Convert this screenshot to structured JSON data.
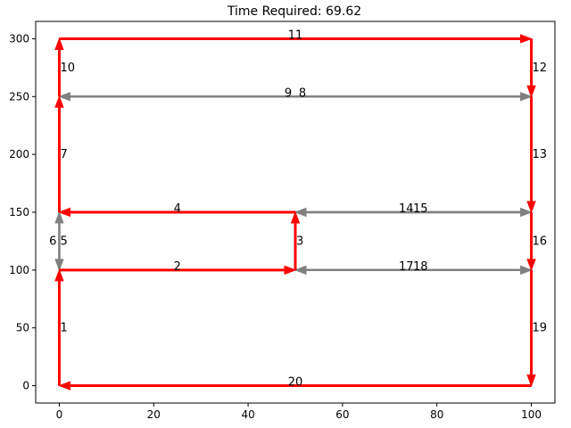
{
  "chart_data": {
    "type": "line",
    "title": "Time Required: 69.62",
    "xlabel": "",
    "ylabel": "",
    "xlim": [
      -5,
      105
    ],
    "ylim": [
      -15,
      315
    ],
    "x_ticks": [
      0,
      20,
      40,
      60,
      80,
      100
    ],
    "y_ticks": [
      0,
      50,
      100,
      150,
      200,
      250,
      300
    ],
    "grid": false,
    "colors": {
      "primary": "#ff0000",
      "secondary": "#808080"
    },
    "segments": [
      {
        "id": "1",
        "from": [
          0,
          0
        ],
        "to": [
          0,
          100
        ],
        "style": "primary",
        "label": "1"
      },
      {
        "id": "2",
        "from": [
          0,
          100
        ],
        "to": [
          50,
          100
        ],
        "style": "primary",
        "label": "2"
      },
      {
        "id": "3",
        "from": [
          50,
          100
        ],
        "to": [
          50,
          150
        ],
        "style": "primary",
        "label": "3"
      },
      {
        "id": "4",
        "from": [
          50,
          150
        ],
        "to": [
          0,
          150
        ],
        "style": "primary",
        "label": "4"
      },
      {
        "id": "5",
        "from": [
          0,
          150
        ],
        "to": [
          0,
          100
        ],
        "style": "secondary",
        "label": "5"
      },
      {
        "id": "6",
        "from": [
          0,
          100
        ],
        "to": [
          0,
          150
        ],
        "style": "secondary",
        "label": "6"
      },
      {
        "id": "7",
        "from": [
          0,
          150
        ],
        "to": [
          0,
          250
        ],
        "style": "primary",
        "label": "7"
      },
      {
        "id": "8",
        "from": [
          0,
          250
        ],
        "to": [
          100,
          250
        ],
        "style": "secondary",
        "label": "8"
      },
      {
        "id": "9",
        "from": [
          100,
          250
        ],
        "to": [
          0,
          250
        ],
        "style": "secondary",
        "label": "9"
      },
      {
        "id": "10",
        "from": [
          0,
          250
        ],
        "to": [
          0,
          300
        ],
        "style": "primary",
        "label": "10"
      },
      {
        "id": "11",
        "from": [
          0,
          300
        ],
        "to": [
          100,
          300
        ],
        "style": "primary",
        "label": "11"
      },
      {
        "id": "12",
        "from": [
          100,
          300
        ],
        "to": [
          100,
          250
        ],
        "style": "primary",
        "label": "12"
      },
      {
        "id": "13",
        "from": [
          100,
          250
        ],
        "to": [
          100,
          150
        ],
        "style": "primary",
        "label": "13"
      },
      {
        "id": "14",
        "from": [
          100,
          150
        ],
        "to": [
          50,
          150
        ],
        "style": "secondary",
        "label": "14"
      },
      {
        "id": "15",
        "from": [
          50,
          150
        ],
        "to": [
          100,
          150
        ],
        "style": "secondary",
        "label": "15"
      },
      {
        "id": "16",
        "from": [
          100,
          150
        ],
        "to": [
          100,
          100
        ],
        "style": "primary",
        "label": "16"
      },
      {
        "id": "17",
        "from": [
          100,
          100
        ],
        "to": [
          50,
          100
        ],
        "style": "secondary",
        "label": "17"
      },
      {
        "id": "18",
        "from": [
          50,
          100
        ],
        "to": [
          100,
          100
        ],
        "style": "secondary",
        "label": "18"
      },
      {
        "id": "19",
        "from": [
          100,
          100
        ],
        "to": [
          100,
          0
        ],
        "style": "primary",
        "label": "19"
      },
      {
        "id": "20",
        "from": [
          100,
          0
        ],
        "to": [
          0,
          0
        ],
        "style": "primary",
        "label": "20"
      }
    ]
  }
}
